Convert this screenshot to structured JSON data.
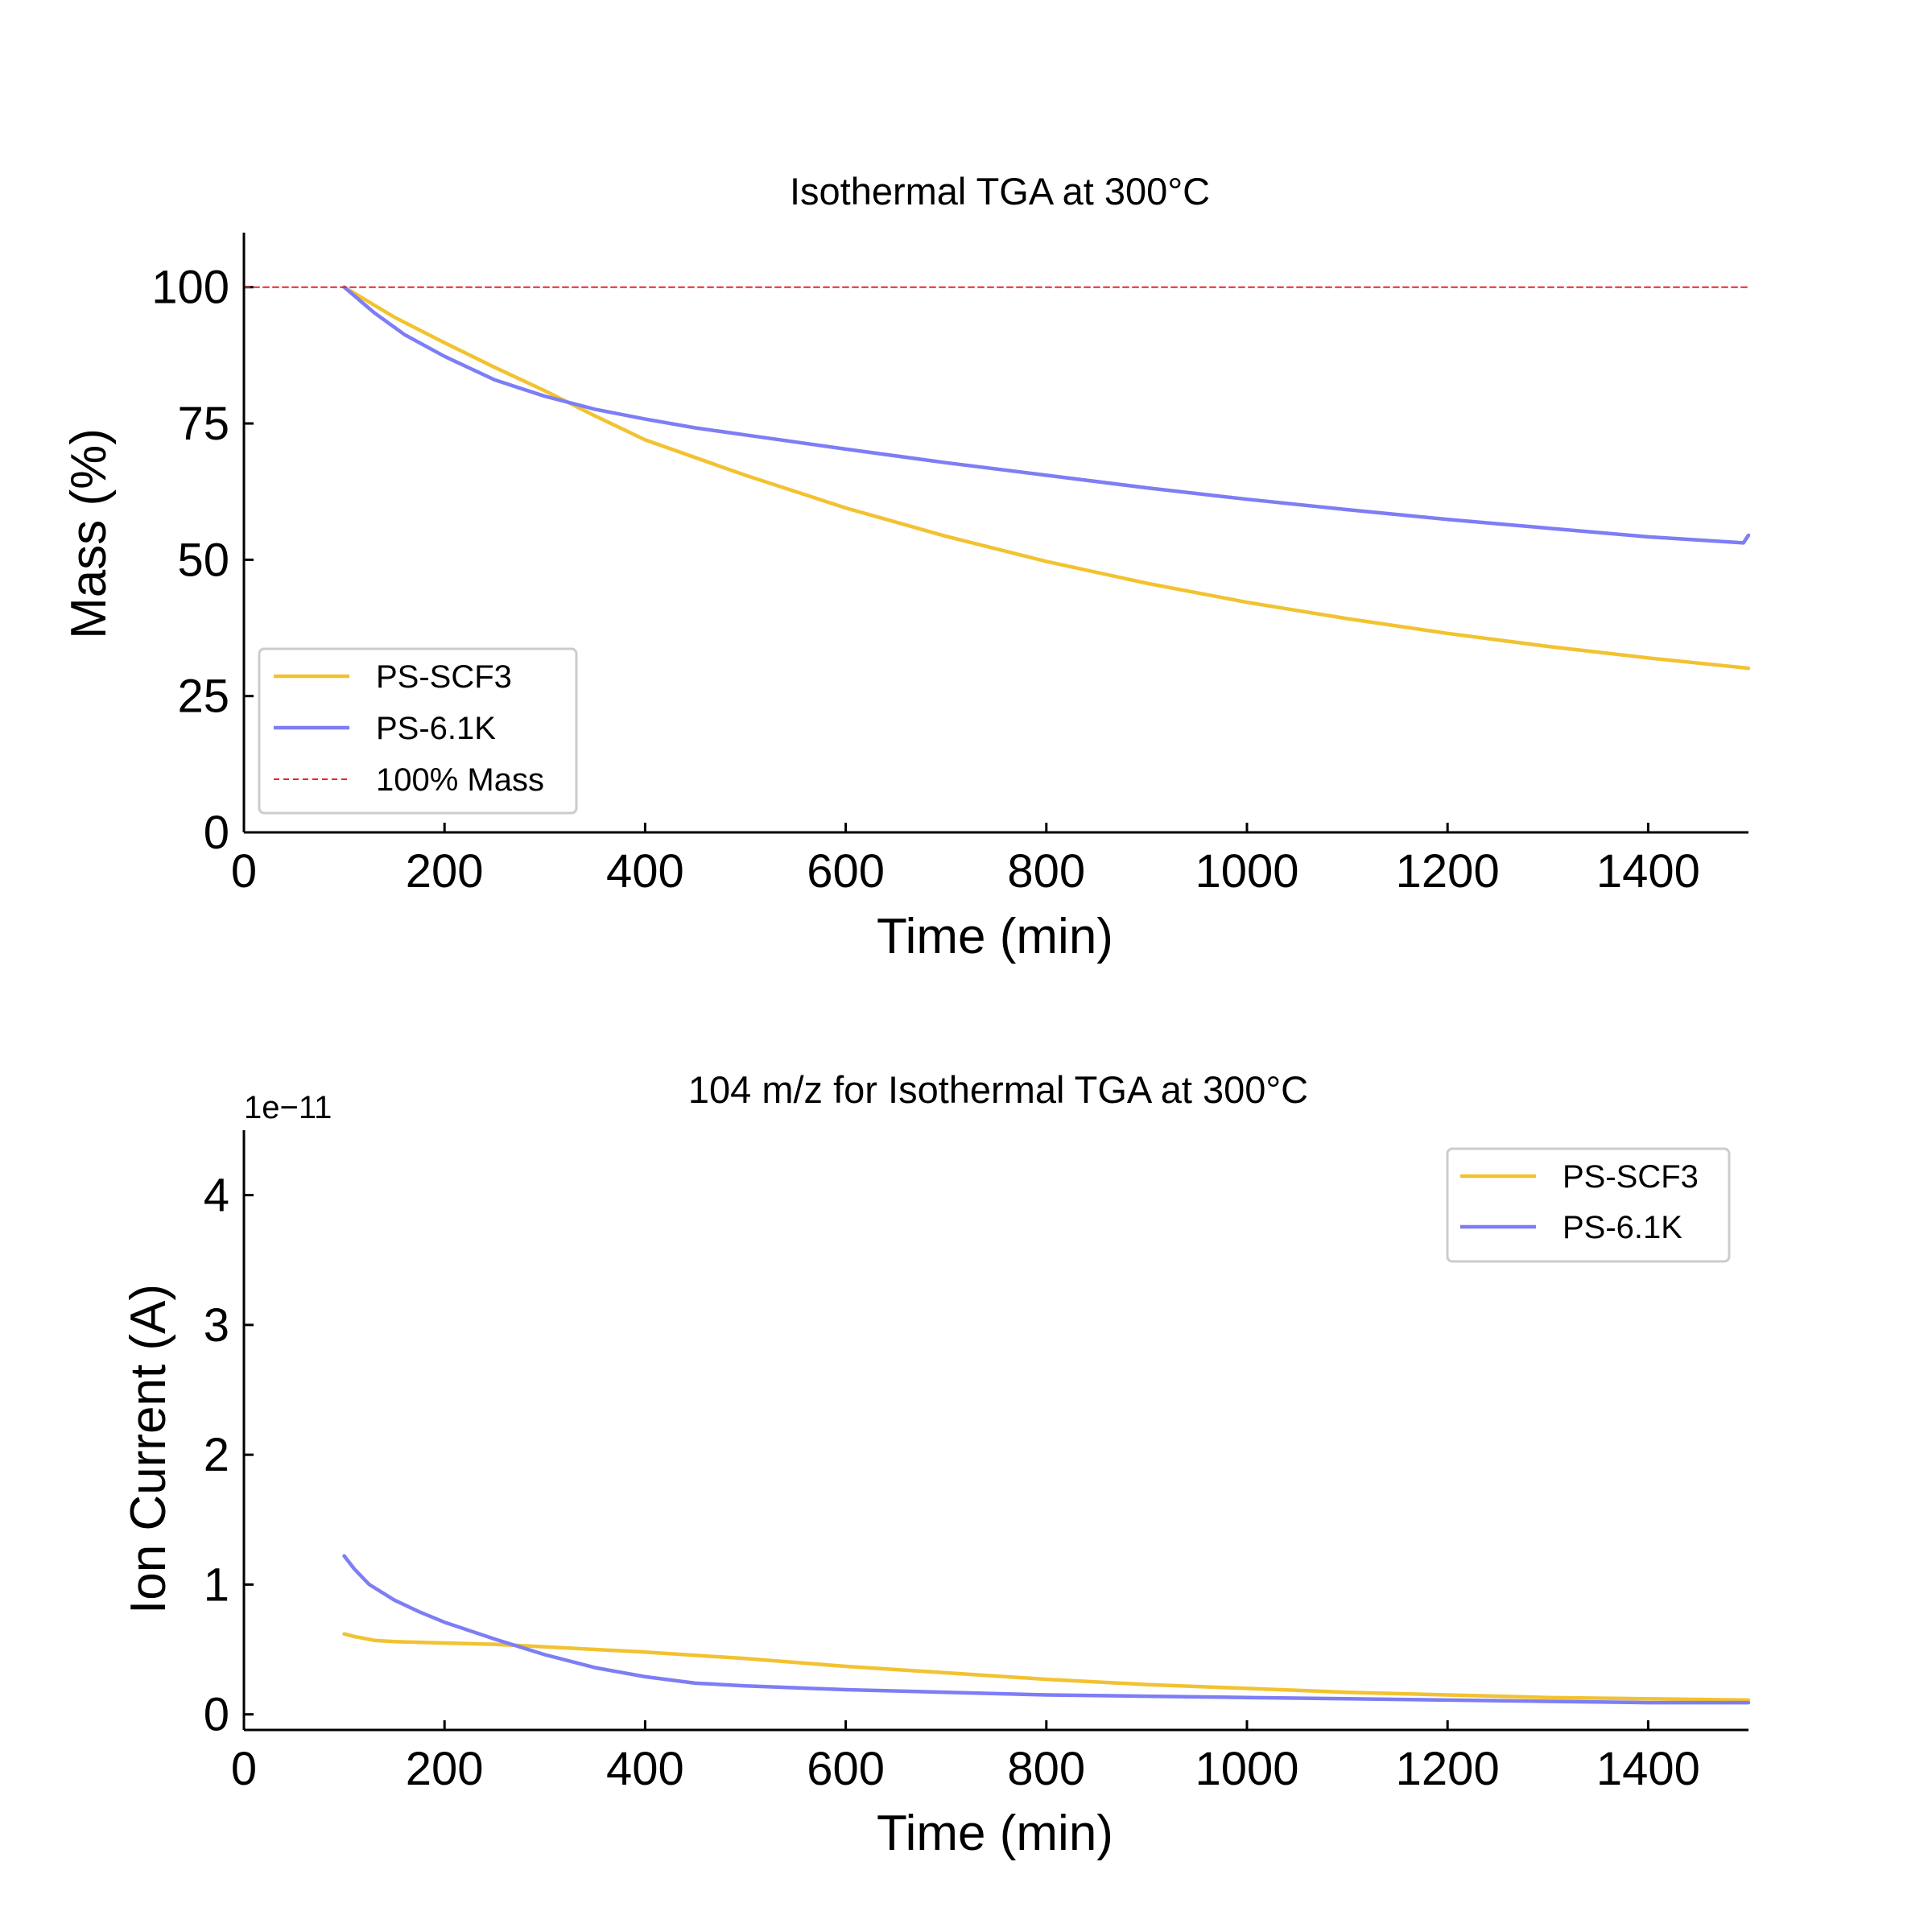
{
  "figure": {
    "colors": {
      "ps_scf3": "#f2c230",
      "ps_6_1k": "#7d7ef5",
      "ref": "#e8262b"
    }
  },
  "chart_data": [
    {
      "type": "line",
      "title": "Isothermal TGA at 300°C",
      "xlabel": "Time (min)",
      "ylabel": "Mass (%)",
      "xlim": [
        0,
        1500
      ],
      "ylim": [
        0,
        110
      ],
      "xticks": [
        0,
        200,
        400,
        600,
        800,
        1000,
        1200,
        1400
      ],
      "yticks": [
        0,
        25,
        50,
        75,
        100
      ],
      "xtick_labels": [
        "0",
        "200",
        "400",
        "600",
        "800",
        "1000",
        "1200",
        "1400"
      ],
      "ytick_labels": [
        "0",
        "25",
        "50",
        "75",
        "100"
      ],
      "legend_position": "lower-left",
      "series": [
        {
          "name": "PS-SCF3",
          "color": "#f2c230",
          "style": "solid",
          "x": [
            100,
            150,
            200,
            250,
            300,
            350,
            400,
            500,
            600,
            700,
            800,
            900,
            1000,
            1100,
            1200,
            1300,
            1400,
            1500
          ],
          "y": [
            100,
            94.5,
            89.8,
            85.3,
            81.0,
            76.4,
            72.0,
            65.5,
            59.5,
            54.3,
            49.7,
            45.7,
            42.2,
            39.2,
            36.5,
            34.1,
            32.0,
            30.1
          ]
        },
        {
          "name": "PS-6.1K",
          "color": "#7d7ef5",
          "style": "solid",
          "x": [
            100,
            130,
            160,
            200,
            250,
            300,
            350,
            400,
            450,
            500,
            600,
            700,
            800,
            900,
            1000,
            1100,
            1200,
            1300,
            1400,
            1495,
            1500
          ],
          "y": [
            100,
            95.3,
            91.3,
            87.3,
            83.0,
            80.0,
            77.6,
            75.8,
            74.2,
            72.9,
            70.3,
            67.8,
            65.5,
            63.2,
            61.1,
            59.2,
            57.4,
            55.8,
            54.2,
            53.1,
            54.5
          ]
        },
        {
          "name": "100% Mass",
          "color": "#e8262b",
          "style": "dashed",
          "x": [
            0,
            1500
          ],
          "y": [
            100,
            100
          ]
        }
      ]
    },
    {
      "type": "line",
      "title": "104 m/z for Isothermal TGA at 300°C",
      "xlabel": "Time (min)",
      "ylabel": "Ion Current (A)",
      "offset_label": "1e−11",
      "xlim": [
        0,
        1500
      ],
      "ylim": [
        -0.12,
        4.5
      ],
      "xticks": [
        0,
        200,
        400,
        600,
        800,
        1000,
        1200,
        1400
      ],
      "yticks": [
        0,
        1,
        2,
        3,
        4
      ],
      "xtick_labels": [
        "0",
        "200",
        "400",
        "600",
        "800",
        "1000",
        "1200",
        "1400"
      ],
      "ytick_labels": [
        "0",
        "1",
        "2",
        "3",
        "4"
      ],
      "legend_position": "upper-right",
      "series": [
        {
          "name": "PS-SCF3",
          "color": "#f2c230",
          "style": "solid",
          "x": [
            100,
            110,
            130,
            150,
            200,
            250,
            300,
            350,
            400,
            500,
            600,
            700,
            800,
            900,
            1000,
            1100,
            1200,
            1300,
            1400,
            1500
          ],
          "y": [
            0.62,
            0.6,
            0.57,
            0.56,
            0.55,
            0.54,
            0.52,
            0.5,
            0.48,
            0.43,
            0.37,
            0.32,
            0.27,
            0.23,
            0.2,
            0.17,
            0.15,
            0.13,
            0.12,
            0.11
          ]
        },
        {
          "name": "PS-6.1K",
          "color": "#7d7ef5",
          "style": "solid",
          "x": [
            100,
            110,
            125,
            150,
            175,
            200,
            250,
            300,
            350,
            400,
            450,
            500,
            600,
            700,
            800,
            900,
            1000,
            1100,
            1200,
            1300,
            1400,
            1500
          ],
          "y": [
            1.22,
            1.12,
            1.0,
            0.88,
            0.79,
            0.71,
            0.58,
            0.46,
            0.36,
            0.29,
            0.24,
            0.22,
            0.19,
            0.17,
            0.15,
            0.14,
            0.13,
            0.12,
            0.11,
            0.1,
            0.09,
            0.09
          ]
        }
      ]
    }
  ]
}
